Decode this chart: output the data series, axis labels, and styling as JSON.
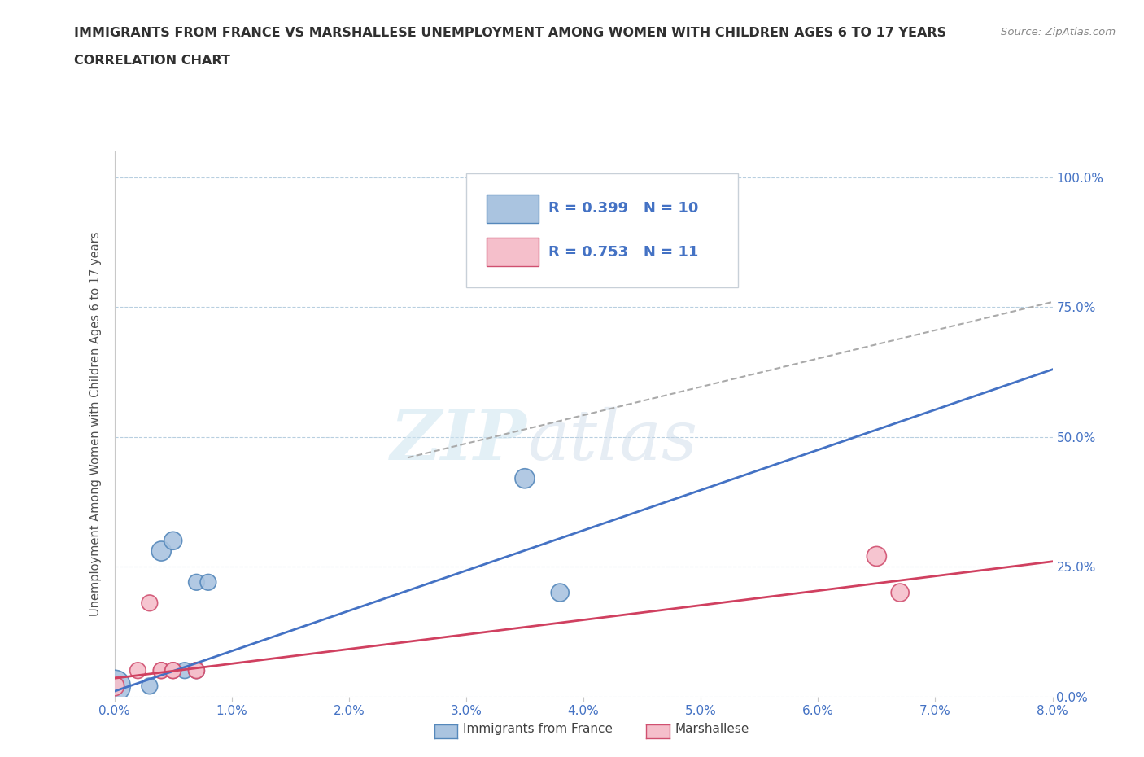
{
  "title_line1": "IMMIGRANTS FROM FRANCE VS MARSHALLESE UNEMPLOYMENT AMONG WOMEN WITH CHILDREN AGES 6 TO 17 YEARS",
  "title_line2": "CORRELATION CHART",
  "source_text": "Source: ZipAtlas.com",
  "ylabel": "Unemployment Among Women with Children Ages 6 to 17 years",
  "xlabel_ticks": [
    "0.0%",
    "1.0%",
    "2.0%",
    "3.0%",
    "4.0%",
    "5.0%",
    "6.0%",
    "7.0%",
    "8.0%"
  ],
  "ylabel_ticks": [
    "0.0%",
    "25.0%",
    "50.0%",
    "75.0%",
    "100.0%"
  ],
  "xlim": [
    0.0,
    0.08
  ],
  "ylim": [
    0.0,
    1.05
  ],
  "france_x": [
    0.0,
    0.003,
    0.004,
    0.005,
    0.006,
    0.007,
    0.007,
    0.008,
    0.035,
    0.038
  ],
  "france_y": [
    0.02,
    0.02,
    0.28,
    0.3,
    0.05,
    0.05,
    0.22,
    0.22,
    0.42,
    0.2
  ],
  "france_sizes": [
    800,
    200,
    300,
    250,
    200,
    200,
    200,
    200,
    300,
    250
  ],
  "marshall_x": [
    0.0,
    0.002,
    0.003,
    0.004,
    0.004,
    0.005,
    0.005,
    0.007,
    0.007,
    0.065,
    0.067
  ],
  "marshall_y": [
    0.02,
    0.05,
    0.18,
    0.05,
    0.05,
    0.05,
    0.05,
    0.05,
    0.05,
    0.27,
    0.2
  ],
  "marshall_sizes": [
    300,
    200,
    200,
    200,
    200,
    200,
    200,
    200,
    200,
    300,
    250
  ],
  "france_color": "#aac4e0",
  "france_edge": "#5588bb",
  "marshall_color": "#f5bfcb",
  "marshall_edge": "#d05070",
  "france_line_color": "#4472c4",
  "marshall_line_color": "#d04060",
  "trend_line_color": "#aaaaaa",
  "R_france": 0.399,
  "N_france": 10,
  "R_marshall": 0.753,
  "N_marshall": 11,
  "watermark_zip": "ZIP",
  "watermark_atlas": "atlas",
  "background_color": "#ffffff",
  "grid_color": "#b8cfe0",
  "title_color": "#303030",
  "axis_label_color": "#505050",
  "tick_color": "#4472c4",
  "legend_france_label": "Immigrants from France",
  "legend_marshall_label": "Marshallese",
  "france_trend_x": [
    0.0,
    0.08
  ],
  "france_trend_y": [
    0.01,
    0.63
  ],
  "marshall_trend_x": [
    0.0,
    0.08
  ],
  "marshall_trend_y": [
    0.035,
    0.26
  ],
  "dashed_trend_x": [
    0.025,
    0.08
  ],
  "dashed_trend_y": [
    0.46,
    0.76
  ]
}
